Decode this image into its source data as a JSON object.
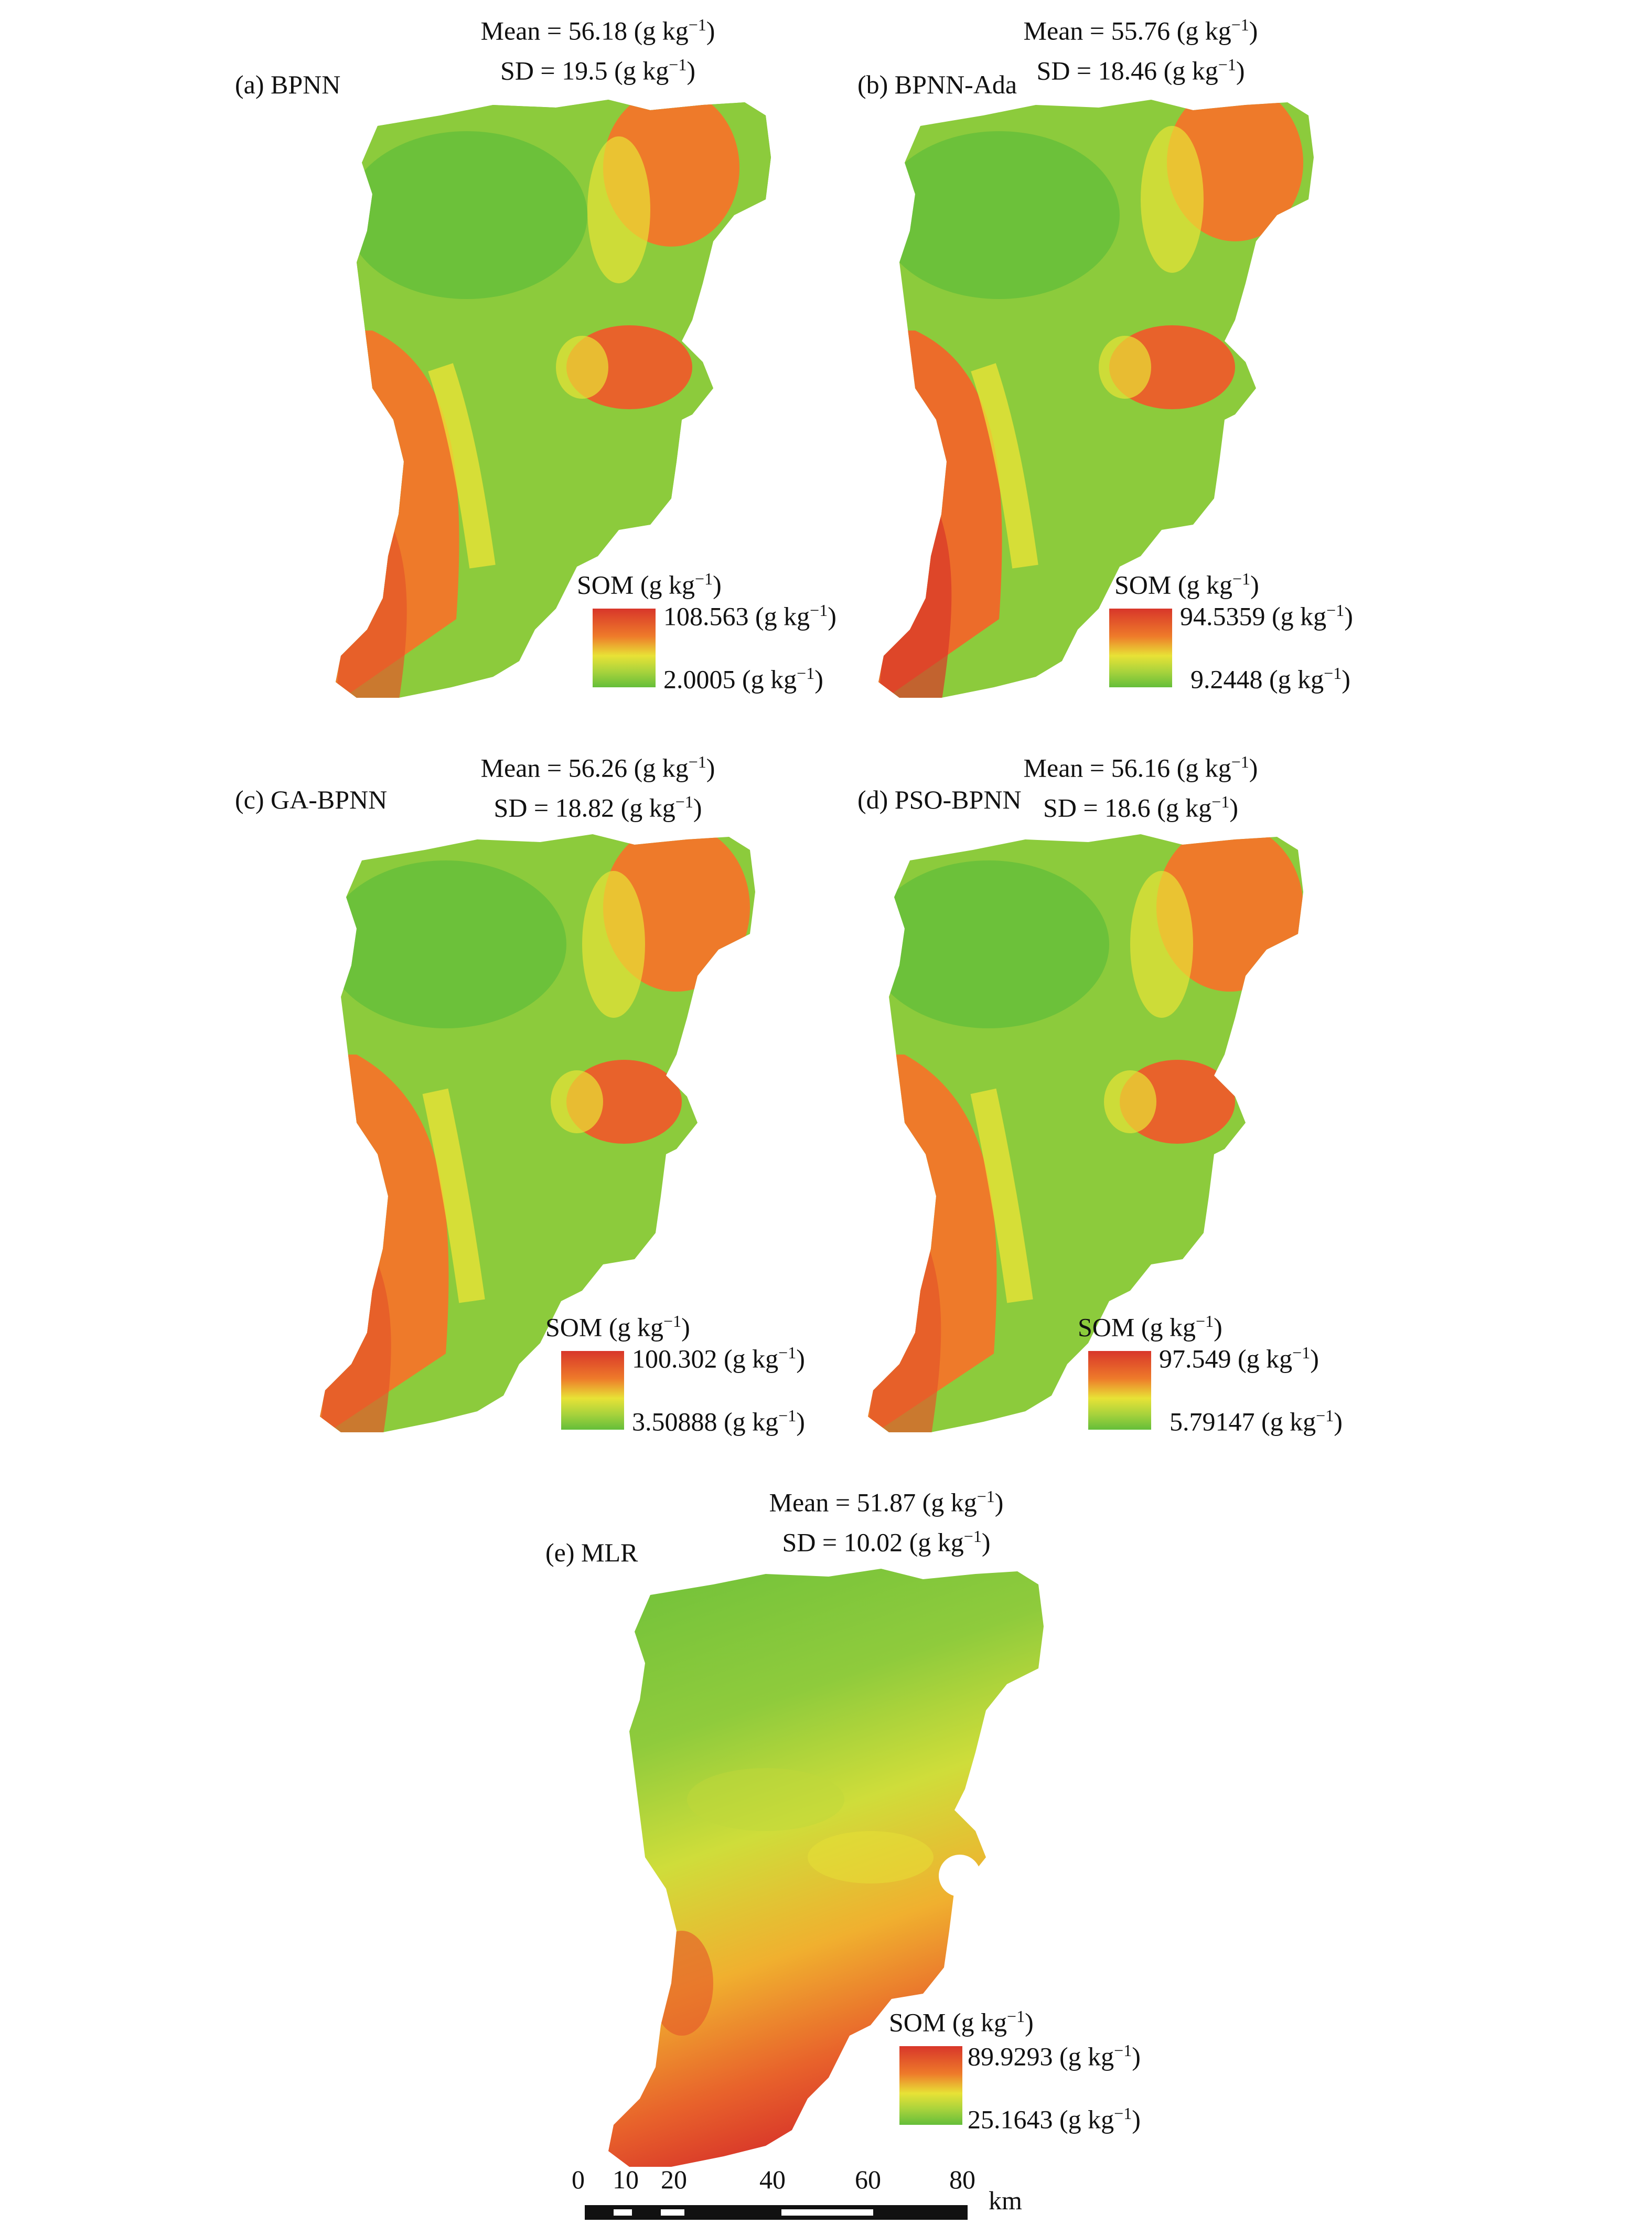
{
  "colors": {
    "high": "#d8362a",
    "mid_high": "#ee7a2a",
    "mid": "#e8e236",
    "mid_low": "#a9d33c",
    "low": "#64be3a"
  },
  "panels": [
    {
      "label": "(a) BPNN",
      "mean_text": "Mean = 56.18 (g kg",
      "sd_text": "SD = 19.5 (g kg",
      "legend_title": "SOM (g kg",
      "legend_max": "108.563 (g kg",
      "legend_min": "2.0005 (g kg",
      "mean": 56.18,
      "sd": 19.5,
      "max": 108.563,
      "min": 2.0005
    },
    {
      "label": "(b) BPNN-Ada",
      "mean_text": "Mean = 55.76 (g kg",
      "sd_text": "SD = 18.46 (g kg",
      "legend_title": "SOM (g kg",
      "legend_max": "94.5359 (g kg",
      "legend_min": "9.2448 (g kg",
      "mean": 55.76,
      "sd": 18.46,
      "max": 94.5359,
      "min": 9.2448
    },
    {
      "label": "(c) GA-BPNN",
      "mean_text": "Mean = 56.26 (g kg",
      "sd_text": "SD = 18.82 (g kg",
      "legend_title": "SOM (g kg",
      "legend_max": "100.302 (g kg",
      "legend_min": "3.50888 (g kg",
      "mean": 56.26,
      "sd": 18.82,
      "max": 100.302,
      "min": 3.50888
    },
    {
      "label": "(d) PSO-BPNN",
      "mean_text": "Mean = 56.16 (g kg",
      "sd_text": "SD = 18.6 (g kg",
      "legend_title": "SOM (g kg",
      "legend_max": "97.549 (g kg",
      "legend_min": "5.79147 (g kg",
      "mean": 56.16,
      "sd": 18.6,
      "max": 97.549,
      "min": 5.79147
    },
    {
      "label": "(e) MLR",
      "mean_text": "Mean = 51.87 (g kg",
      "sd_text": "SD = 10.02 (g kg",
      "legend_title": "SOM (g kg",
      "legend_max": "89.9293 (g kg",
      "legend_min": "25.1643 (g kg",
      "mean": 51.87,
      "sd": 10.02,
      "max": 89.9293,
      "min": 25.1643
    }
  ],
  "unit_exponent": "−1",
  "unit_close": ")",
  "scale": {
    "ticks": [
      "0",
      "10",
      "20",
      "40",
      "60",
      "80"
    ],
    "unit": "km"
  }
}
